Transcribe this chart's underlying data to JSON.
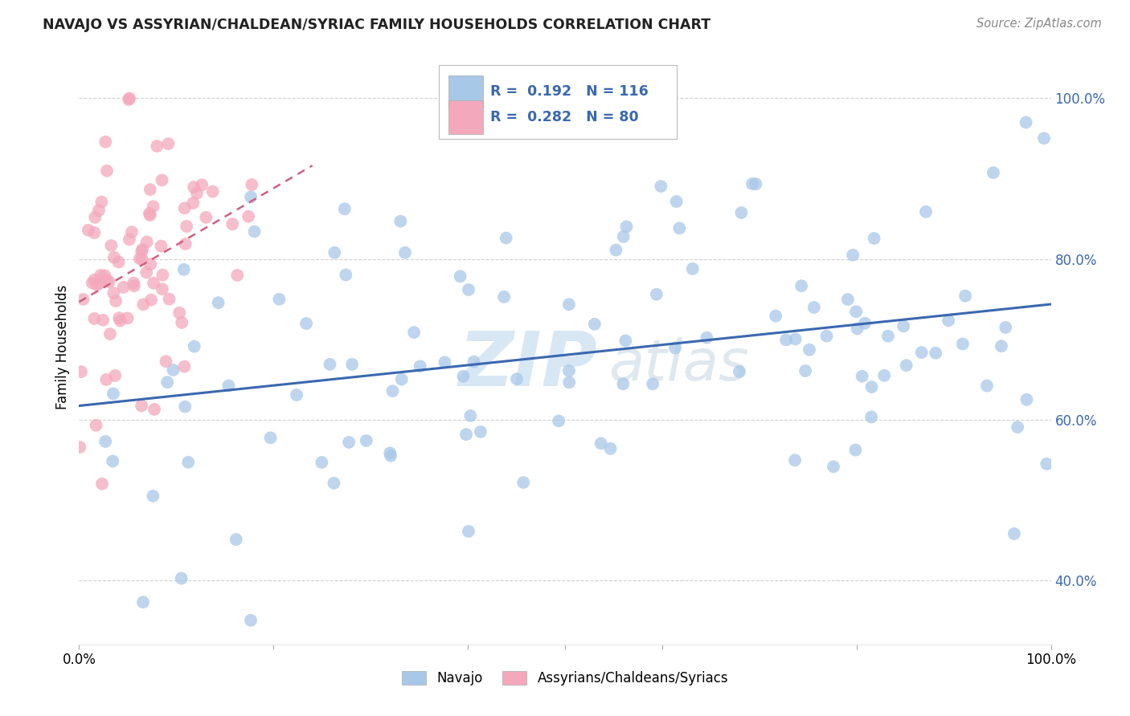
{
  "title": "NAVAJO VS ASSYRIAN/CHALDEAN/SYRIAC FAMILY HOUSEHOLDS CORRELATION CHART",
  "source": "Source: ZipAtlas.com",
  "ylabel": "Family Households",
  "legend_navajo": "Navajo",
  "legend_assyrian": "Assyrians/Chaldeans/Syriacs",
  "r_navajo": 0.192,
  "n_navajo": 116,
  "r_assyrian": 0.282,
  "n_assyrian": 80,
  "navajo_color": "#a8c8e8",
  "assyrian_color": "#f4a8bc",
  "navajo_line_color": "#3a68b0",
  "assyrian_line_color": "#d06080",
  "tick_color": "#3a68b0",
  "watermark_zip_color": "#b8d8f0",
  "watermark_atlas_color": "#c8d8e8",
  "xlim": [
    0.0,
    1.0
  ],
  "ylim": [
    0.32,
    1.06
  ],
  "yticks": [
    0.4,
    0.6,
    0.8,
    1.0
  ],
  "ytick_labels": [
    "40.0%",
    "60.0%",
    "80.0%",
    "100.0%"
  ]
}
